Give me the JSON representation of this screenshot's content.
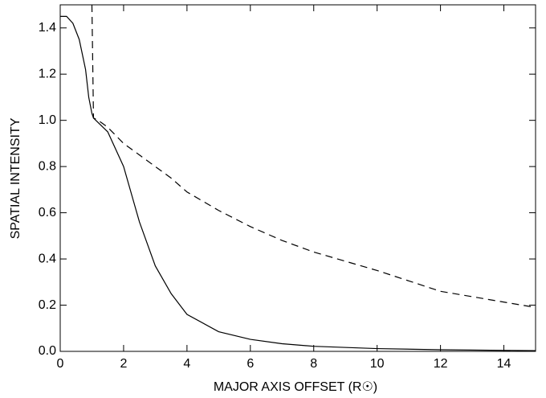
{
  "chart_data": {
    "type": "line",
    "xlabel": "MAJOR AXIS OFFSET (R☉)",
    "ylabel": "SPATIAL INTENSITY",
    "x": [
      0,
      0.2,
      0.4,
      0.6,
      0.8,
      0.9,
      1.0,
      1.05,
      1.2,
      1.5,
      2,
      2.5,
      3,
      3.5,
      4,
      5,
      6,
      7,
      8,
      10,
      12,
      15
    ],
    "series": [
      {
        "color": "#000000",
        "dash": "none",
        "values": [
          1.45,
          1.45,
          1.42,
          1.35,
          1.22,
          1.1,
          1.03,
          1.01,
          0.99,
          0.95,
          0.8,
          0.56,
          0.37,
          0.25,
          0.16,
          0.085,
          0.052,
          0.033,
          0.022,
          0.012,
          0.007,
          0.003
        ]
      },
      {
        "color": "#000000",
        "dash": "9 6",
        "values": [
          null,
          null,
          null,
          null,
          null,
          null,
          1.5,
          1.01,
          1.0,
          0.97,
          0.9,
          0.85,
          0.8,
          0.75,
          0.69,
          0.61,
          0.54,
          0.48,
          0.43,
          0.35,
          0.26,
          0.19
        ]
      }
    ],
    "xlim": [
      0,
      15
    ],
    "xticks": [
      0,
      2,
      4,
      6,
      8,
      10,
      12,
      14
    ],
    "ylim": [
      0,
      1.5
    ],
    "yticks": [
      {
        "value": 0,
        "label": "0.0"
      },
      {
        "value": 0.2,
        "label": "0.2"
      },
      {
        "value": 0.4,
        "label": "0.4"
      },
      {
        "value": 0.6,
        "label": "0.6"
      },
      {
        "value": 0.8,
        "label": "0.8"
      },
      {
        "value": 1.0,
        "label": "1.0"
      },
      {
        "value": 1.2,
        "label": "1.2"
      },
      {
        "value": 1.4,
        "label": "1.4"
      }
    ]
  }
}
